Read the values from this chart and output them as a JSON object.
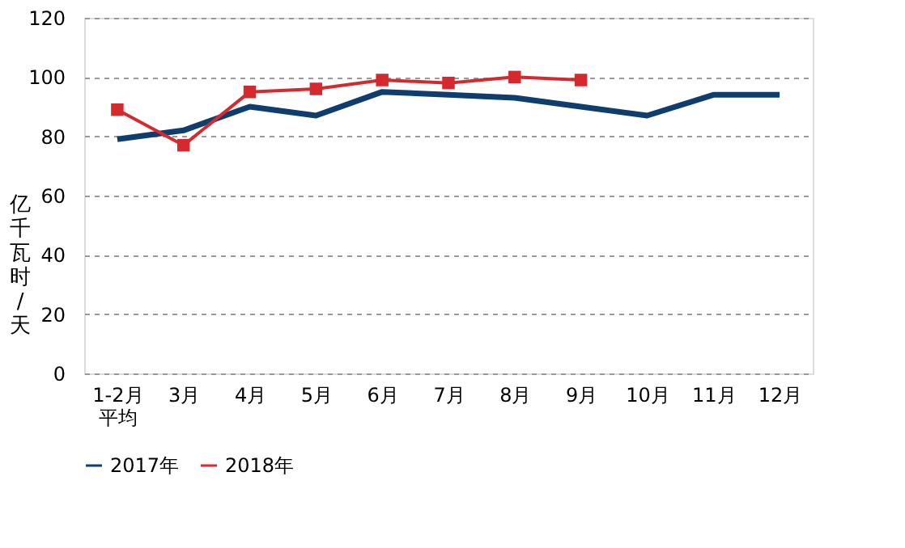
{
  "chart_data": {
    "type": "line",
    "ylabel": "亿千瓦时/天",
    "categories": [
      "1-2月平均",
      "3月",
      "4月",
      "5月",
      "6月",
      "7月",
      "8月",
      "9月",
      "10月",
      "11月",
      "12月"
    ],
    "series": [
      {
        "name": "2017年",
        "color": "#0e3d6e",
        "marker": "none",
        "values": [
          79,
          82,
          90,
          87,
          95,
          94,
          93,
          90,
          87,
          94,
          94
        ]
      },
      {
        "name": "2018年",
        "color": "#d42a2f",
        "marker": "square",
        "values": [
          89,
          77,
          95,
          96,
          99,
          98,
          100,
          99,
          null,
          null,
          null
        ]
      }
    ],
    "ylim": [
      0,
      120
    ],
    "yticks": [
      0,
      20,
      40,
      60,
      80,
      100,
      120
    ],
    "grid": "y",
    "legend": "bottom",
    "line_style": "solid"
  }
}
